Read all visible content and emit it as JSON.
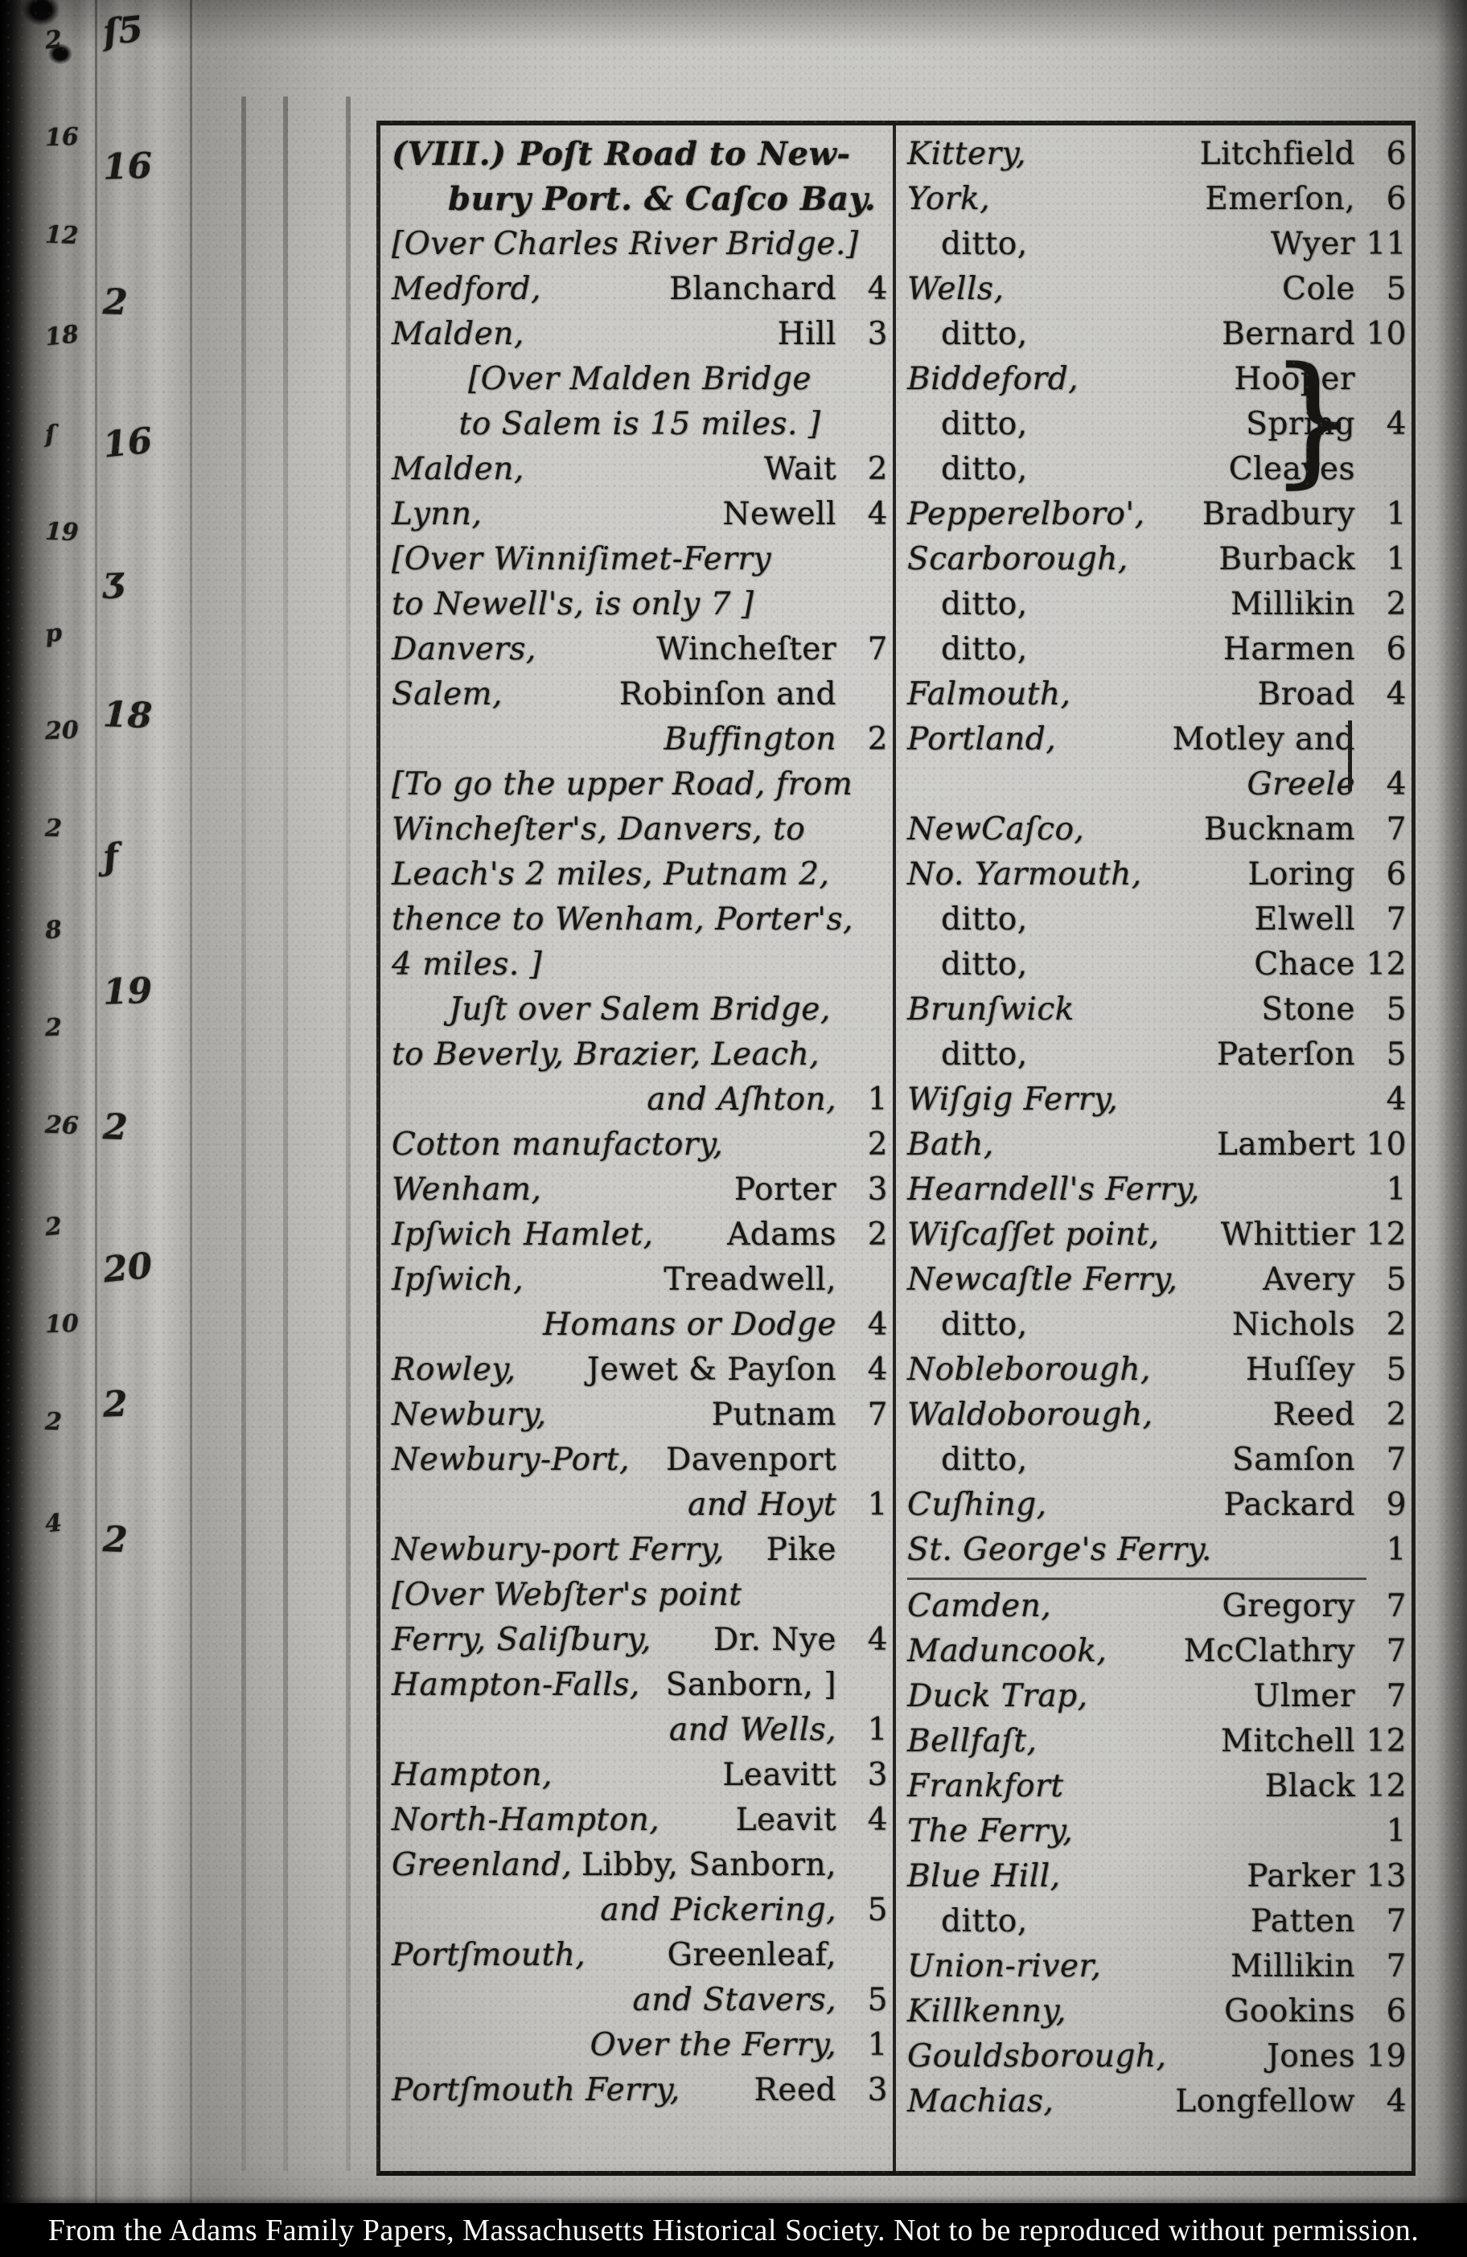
{
  "caption": {
    "text": "From the Adams Family Papers, Massachusetts Historical Society. Not to be reproduced without permission."
  },
  "edge": {
    "marks_small": [
      "2",
      "16",
      "12",
      "18",
      "ſ",
      "19",
      "p",
      "20",
      "2",
      "8",
      "2",
      "26",
      "2",
      "10",
      "2",
      "4"
    ],
    "marks_large": [
      "ſ5",
      "16",
      "2",
      "16",
      "ʒ",
      "18",
      "ƒ",
      "19",
      "2",
      "20",
      "2",
      "2"
    ]
  },
  "decor": {
    "brace": "}",
    "bar": "|"
  },
  "table": {
    "left": [
      {
        "type": "title",
        "text": "(VIII.) Poſt Road to New-"
      },
      {
        "type": "title2",
        "text": "bury Port. & Caſco Bay."
      },
      {
        "type": "note",
        "text": "[Over Charles River Bridge.]"
      },
      {
        "type": "row",
        "place": "Medford,",
        "name": "Blanchard",
        "miles": "4"
      },
      {
        "type": "row",
        "place": "Malden,",
        "name": "Hill",
        "miles": "3"
      },
      {
        "type": "note-c",
        "text": "[Over Malden Bridge"
      },
      {
        "type": "note-c",
        "text": "to Salem is 15 miles. ]"
      },
      {
        "type": "row",
        "place": "Malden,",
        "name": "Wait",
        "miles": "2"
      },
      {
        "type": "row",
        "place": "Lynn,",
        "name": "Newell",
        "miles": "4"
      },
      {
        "type": "note",
        "text": "[Over Winniſimet-Ferry"
      },
      {
        "type": "note",
        "text": "to Newell's, is only 7 ]"
      },
      {
        "type": "row",
        "place": "Danvers,",
        "name": "Wincheſter",
        "miles": "7"
      },
      {
        "type": "row",
        "place": "Salem,",
        "name": "Robinſon and",
        "miles": ""
      },
      {
        "type": "cont",
        "text": "Buffington",
        "miles": "2"
      },
      {
        "type": "note",
        "text": "[To go the upper Road, from"
      },
      {
        "type": "note",
        "text": "Wincheſter's, Danvers, to"
      },
      {
        "type": "note",
        "text": "Leach's 2 miles, Putnam 2,"
      },
      {
        "type": "note",
        "text": "thence to Wenham, Porter's,"
      },
      {
        "type": "note",
        "text": "4 miles. ]"
      },
      {
        "type": "note-c",
        "text": "Juſt over Salem Bridge,"
      },
      {
        "type": "note",
        "text": "to Beverly, Brazier, Leach,"
      },
      {
        "type": "cont",
        "text": "and Aſhton,",
        "miles": "1"
      },
      {
        "type": "row",
        "place": "Cotton manufactory,",
        "name": "",
        "miles": "2"
      },
      {
        "type": "row",
        "place": "Wenham,",
        "name": "Porter",
        "miles": "3"
      },
      {
        "type": "row",
        "place": "Ipſwich Hamlet,",
        "name": "Adams",
        "miles": "2"
      },
      {
        "type": "row",
        "place": "Ipſwich,",
        "name": "Treadwell,",
        "miles": ""
      },
      {
        "type": "cont",
        "text": "Homans or Dodge",
        "miles": "4"
      },
      {
        "type": "row",
        "place": "Rowley,",
        "name": "Jewet & Payſon",
        "miles": "4"
      },
      {
        "type": "row",
        "place": "Newbury,",
        "name": "Putnam",
        "miles": "7"
      },
      {
        "type": "row",
        "place": "Newbury-Port,",
        "name": "Davenport",
        "miles": ""
      },
      {
        "type": "cont",
        "text": "and Hoyt",
        "miles": "1"
      },
      {
        "type": "row",
        "place": "Newbury-port Ferry,",
        "name": "Pike",
        "miles": ""
      },
      {
        "type": "note",
        "text": "[Over Webſter's point"
      },
      {
        "type": "row",
        "place": "Ferry, Saliſbury,",
        "name": "Dr. Nye",
        "miles": "4"
      },
      {
        "type": "row",
        "place": "Hampton-Falls,",
        "name": "Sanborn, ]",
        "miles": ""
      },
      {
        "type": "cont",
        "text": "and Wells,",
        "miles": "1"
      },
      {
        "type": "row",
        "place": "Hampton,",
        "name": "Leavitt",
        "miles": "3"
      },
      {
        "type": "row",
        "place": "North-Hampton,",
        "name": "Leavit",
        "miles": "4"
      },
      {
        "type": "row",
        "place": "Greenland,",
        "name": "Libby, Sanborn,",
        "miles": ""
      },
      {
        "type": "cont",
        "text": "and Pickering,",
        "miles": "5"
      },
      {
        "type": "row",
        "place": "Portſmouth,",
        "name": "Greenleaf,",
        "miles": ""
      },
      {
        "type": "cont",
        "text": "and Stavers,",
        "miles": "5"
      },
      {
        "type": "cont",
        "text": "Over the Ferry,",
        "miles": "1"
      },
      {
        "type": "row",
        "place": "Portſmouth Ferry,",
        "name": "Reed",
        "miles": "3"
      }
    ],
    "right": [
      {
        "type": "row",
        "place": "Kittery,",
        "name": "Litchfield",
        "miles": "6"
      },
      {
        "type": "row",
        "place": "York,",
        "name": "Emerſon,",
        "miles": "6"
      },
      {
        "type": "row",
        "place": "ditto,",
        "name": "Wyer",
        "miles": "11"
      },
      {
        "type": "row",
        "place": "Wells,",
        "name": "Cole",
        "miles": "5"
      },
      {
        "type": "row",
        "place": "ditto,",
        "name": "Bernard",
        "miles": "10"
      },
      {
        "type": "row",
        "place": "Biddeford,",
        "name": "Hooper",
        "miles": ""
      },
      {
        "type": "row",
        "place": "ditto,",
        "name": "Spring",
        "miles": "4"
      },
      {
        "type": "row",
        "place": "ditto,",
        "name": "Cleaves",
        "miles": ""
      },
      {
        "type": "row",
        "place": "Pepperelboro',",
        "name": "Bradbury",
        "miles": "1"
      },
      {
        "type": "row",
        "place": "Scarborough,",
        "name": "Burback",
        "miles": "1"
      },
      {
        "type": "row",
        "place": "ditto,",
        "name": "Millikin",
        "miles": "2"
      },
      {
        "type": "row",
        "place": "ditto,",
        "name": "Harmen",
        "miles": "6"
      },
      {
        "type": "row",
        "place": "Falmouth,",
        "name": "Broad",
        "miles": "4"
      },
      {
        "type": "row",
        "place": "Portland,",
        "name": "Motley and",
        "miles": ""
      },
      {
        "type": "cont",
        "text": "Greele",
        "miles": "4"
      },
      {
        "type": "row",
        "place": "NewCaſco,",
        "name": "Bucknam",
        "miles": "7"
      },
      {
        "type": "row",
        "place": "No. Yarmouth,",
        "name": "Loring",
        "miles": "6"
      },
      {
        "type": "row",
        "place": "ditto,",
        "name": "Elwell",
        "miles": "7"
      },
      {
        "type": "row",
        "place": "ditto,",
        "name": "Chace",
        "miles": "12"
      },
      {
        "type": "row",
        "place": "Brunſwick",
        "name": "Stone",
        "miles": "5"
      },
      {
        "type": "row",
        "place": "ditto,",
        "name": "Paterſon",
        "miles": "5"
      },
      {
        "type": "row",
        "place": "Wiſgig Ferry,",
        "name": "",
        "miles": "4"
      },
      {
        "type": "row",
        "place": "Bath,",
        "name": "Lambert",
        "miles": "10"
      },
      {
        "type": "row",
        "place": "Hearndell's Ferry,",
        "name": "",
        "miles": "1"
      },
      {
        "type": "row",
        "place": "Wiſcaſſet point,",
        "name": "Whittier",
        "miles": "12"
      },
      {
        "type": "row",
        "place": "Newcaſtle Ferry,",
        "name": "Avery",
        "miles": "5"
      },
      {
        "type": "row",
        "place": "ditto,",
        "name": "Nichols",
        "miles": "2"
      },
      {
        "type": "row",
        "place": "Nobleborough,",
        "name": "Huſſey",
        "miles": "5"
      },
      {
        "type": "row",
        "place": "Waldoborough,",
        "name": "Reed",
        "miles": "2"
      },
      {
        "type": "row",
        "place": "ditto,",
        "name": "Samſon",
        "miles": "7"
      },
      {
        "type": "row",
        "place": "Cuſhing,",
        "name": "Packard",
        "miles": "9"
      },
      {
        "type": "row",
        "place": "St. George's Ferry.",
        "name": "",
        "miles": "1"
      },
      {
        "type": "divider"
      },
      {
        "type": "row",
        "place": "Camden,",
        "name": "Gregory",
        "miles": "7"
      },
      {
        "type": "row",
        "place": "Maduncook,",
        "name": "McClathry",
        "miles": "7"
      },
      {
        "type": "row",
        "place": "Duck Trap,",
        "name": "Ulmer",
        "miles": "7"
      },
      {
        "type": "row",
        "place": "Bellfaſt,",
        "name": "Mitchell",
        "miles": "12"
      },
      {
        "type": "row",
        "place": "Frankfort",
        "name": "Black",
        "miles": "12"
      },
      {
        "type": "row",
        "place": "The Ferry,",
        "name": "",
        "miles": "1"
      },
      {
        "type": "row",
        "place": "Blue Hill,",
        "name": "Parker",
        "miles": "13"
      },
      {
        "type": "row",
        "place": "ditto,",
        "name": "Patten",
        "miles": "7"
      },
      {
        "type": "row",
        "place": "Union-river,",
        "name": "Millikin",
        "miles": "7"
      },
      {
        "type": "row",
        "place": "Killkenny,",
        "name": "Gookins",
        "miles": "6"
      },
      {
        "type": "row",
        "place": "Gouldsborough,",
        "name": "Jones",
        "miles": "19"
      },
      {
        "type": "row",
        "place": "Machias,",
        "name": "Longfellow",
        "miles": "4"
      }
    ]
  }
}
